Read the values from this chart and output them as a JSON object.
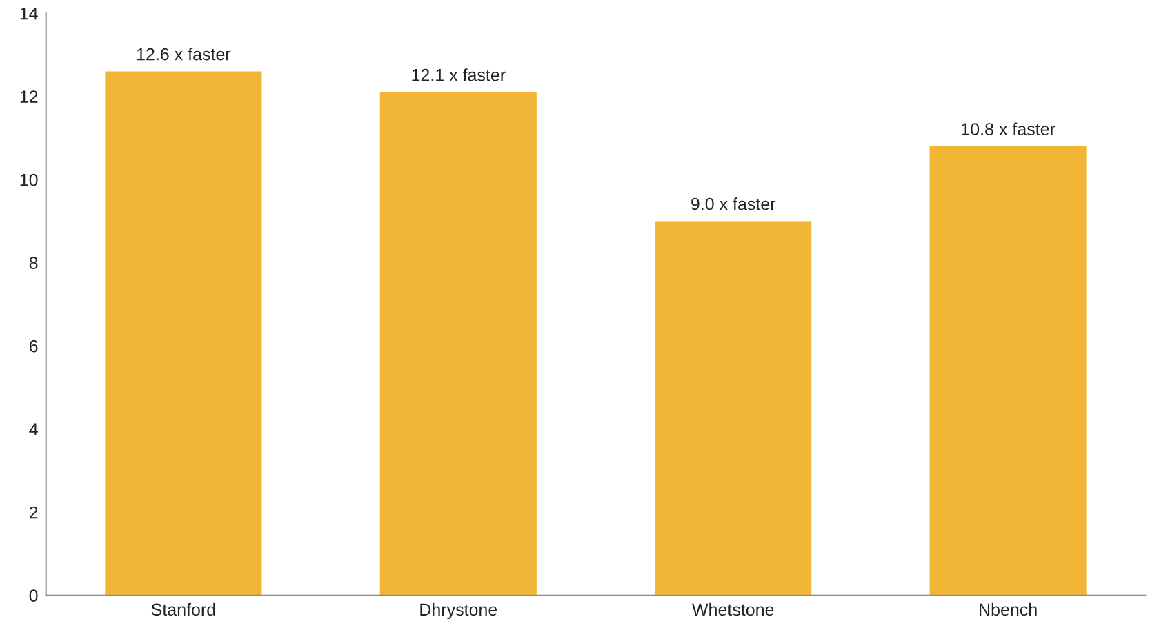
{
  "chart_data": {
    "type": "bar",
    "categories": [
      "Stanford",
      "Dhrystone",
      "Whetstone",
      "Nbench"
    ],
    "values": [
      12.6,
      12.1,
      9.0,
      10.8
    ],
    "value_labels": [
      "12.6 x faster",
      "12.1 x faster",
      "9.0 x faster",
      "10.8 x faster"
    ],
    "color": "#f2b636",
    "ylim": [
      0,
      14
    ],
    "yticks": [
      0,
      2,
      4,
      6,
      8,
      10,
      12,
      14
    ],
    "grid": false
  }
}
